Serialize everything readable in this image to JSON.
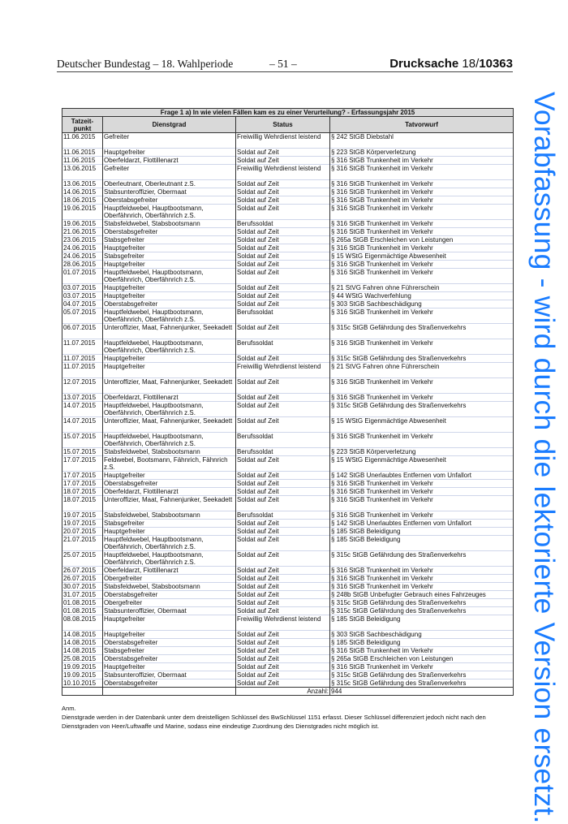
{
  "header": {
    "left": "Deutscher Bundestag – 18. Wahlperiode",
    "page": "– 51 –",
    "doc_prefix": "Drucksache ",
    "doc_number_a": "18/",
    "doc_number_b": "10363"
  },
  "table": {
    "title": "Frage 1 a) In wie vielen Fällen kam es zu einer Verurteilung? - Erfassungsjahr 2015",
    "columns": [
      "Tatzeit-\npunkt",
      "Dienstgrad",
      "Status",
      "Tatvorwurf"
    ],
    "rows": [
      [
        "11.06.2015",
        "Gefreiter",
        "Freiwillig Wehrdienst leistend",
        "§ 242 StGB Diebstahl"
      ],
      [
        "11.06.2015",
        "Hauptgefreiter",
        "Soldat auf Zeit",
        "§ 223 StGB Körperverletzung"
      ],
      [
        "11.06.2015",
        "Oberfeldarzt, Flottillenarzt",
        "Soldat auf Zeit",
        "§ 316 StGB Trunkenheit im Verkehr"
      ],
      [
        "13.06.2015",
        "Gefreiter",
        "Freiwillig Wehrdienst leistend",
        "§ 316 StGB Trunkenheit im Verkehr"
      ],
      [
        "13.06.2015",
        "Oberleutnant, Oberleutnant z.S.",
        "Soldat auf Zeit",
        "§ 316 StGB Trunkenheit im Verkehr"
      ],
      [
        "14.06.2015",
        "Stabsunteroffizier, Obermaat",
        "Soldat auf Zeit",
        "§ 316 StGB Trunkenheit im Verkehr"
      ],
      [
        "18.06.2015",
        "Oberstabsgefreiter",
        "Soldat auf Zeit",
        "§ 316 StGB Trunkenheit im Verkehr"
      ],
      [
        "19.06.2015",
        "Hauptfeldwebel, Hauptbootsmann,\nOberfähnrich, Oberfähnrich z.S.",
        "Soldat auf Zeit",
        "§ 316 StGB Trunkenheit im Verkehr"
      ],
      [
        "19.06.2015",
        "Stabsfeldwebel, Stabsbootsmann",
        "Berufssoldat",
        "§ 316 StGB Trunkenheit im Verkehr"
      ],
      [
        "21.06.2015",
        "Oberstabsgefreiter",
        "Soldat auf Zeit",
        "§ 316 StGB Trunkenheit im Verkehr"
      ],
      [
        "23.06.2015",
        "Stabsgefreiter",
        "Soldat auf Zeit",
        "§ 265a StGB Erschleichen von Leistungen"
      ],
      [
        "24.06.2015",
        "Hauptgefreiter",
        "Soldat auf Zeit",
        "§ 316 StGB Trunkenheit im Verkehr"
      ],
      [
        "24.06.2015",
        "Stabsgefreiter",
        "Soldat auf Zeit",
        "§ 15 WStG Eigenmächtige Abwesenheit"
      ],
      [
        "28.06.2015",
        "Hauptgefreiter",
        "Soldat auf Zeit",
        "§ 316 StGB Trunkenheit im Verkehr"
      ],
      [
        "01.07.2015",
        "Hauptfeldwebel, Hauptbootsmann,\nOberfähnrich, Oberfähnrich z.S.",
        "Soldat auf Zeit",
        "§ 316 StGB Trunkenheit im Verkehr"
      ],
      [
        "03.07.2015",
        "Hauptgefreiter",
        "Soldat auf Zeit",
        "§ 21 StVG Fahren ohne Führerschein"
      ],
      [
        "03.07.2015",
        "Hauptgefreiter",
        "Soldat auf Zeit",
        "§ 44 WStG Wachverfehlung"
      ],
      [
        "04.07.2015",
        "Oberstabsgefreiter",
        "Soldat auf Zeit",
        "§ 303 StGB Sachbeschädigung"
      ],
      [
        "05.07.2015",
        "Hauptfeldwebel, Hauptbootsmann,\nOberfähnrich, Oberfähnrich z.S.",
        "Berufssoldat",
        "§ 316 StGB Trunkenheit im Verkehr"
      ],
      [
        "06.07.2015",
        "Unteroffizier, Maat, Fahnenjunker, Seekadett",
        "Soldat auf Zeit",
        "§ 315c StGB Gefährdung des Straßenverkehrs"
      ],
      [
        "11.07.2015",
        "Hauptfeldwebel, Hauptbootsmann,\nOberfähnrich, Oberfähnrich z.S.",
        "Berufssoldat",
        "§ 316 StGB Trunkenheit im Verkehr"
      ],
      [
        "11.07.2015",
        "Hauptgefreiter",
        "Soldat auf Zeit",
        "§ 315c StGB Gefährdung des Straßenverkehrs"
      ],
      [
        "11.07.2015",
        "Hauptgefreiter",
        "Freiwillig Wehrdienst leistend",
        "§ 21 StVG Fahren ohne Führerschein"
      ],
      [
        "12.07.2015",
        "Unteroffizier, Maat, Fahnenjunker, Seekadett",
        "Soldat auf Zeit",
        "§ 316 StGB Trunkenheit im Verkehr"
      ],
      [
        "13.07.2015",
        "Oberfeldarzt, Flottillenarzt",
        "Soldat auf Zeit",
        "§ 316 StGB Trunkenheit im Verkehr"
      ],
      [
        "14.07.2015",
        "Hauptfeldwebel, Hauptbootsmann,\nOberfähnrich, Oberfähnrich z.S.",
        "Soldat auf Zeit",
        "§ 315c StGB Gefährdung des Straßenverkehrs"
      ],
      [
        "14.07.2015",
        "Unteroffizier, Maat, Fahnenjunker, Seekadett",
        "Soldat auf Zeit",
        "§ 15 WStG Eigenmächtige Abwesenheit"
      ],
      [
        "15.07.2015",
        "Hauptfeldwebel, Hauptbootsmann,\nOberfähnrich, Oberfähnrich z.S.",
        "Berufssoldat",
        "§ 316 StGB Trunkenheit im Verkehr"
      ],
      [
        "15.07.2015",
        "Stabsfeldwebel, Stabsbootsmann",
        "Berufssoldat",
        "§ 223 StGB Körperverletzung"
      ],
      [
        "17.07.2015",
        "Feldwebel, Bootsmann, Fähnrich, Fähnrich\nz.S.",
        "Soldat auf Zeit",
        "§ 15 WStG Eigenmächtige Abwesenheit"
      ],
      [
        "17.07.2015",
        "Hauptgefreiter",
        "Soldat auf Zeit",
        "§ 142 StGB Unerlaubtes Entfernen vom Unfallort"
      ],
      [
        "17.07.2015",
        "Oberstabsgefreiter",
        "Soldat auf Zeit",
        "§ 316 StGB Trunkenheit im Verkehr"
      ],
      [
        "18.07.2015",
        "Oberfeldarzt, Flottillenarzt",
        "Soldat auf Zeit",
        "§ 316 StGB Trunkenheit im Verkehr"
      ],
      [
        "18.07.2015",
        "Unteroffizier, Maat, Fahnenjunker, Seekadett",
        "Soldat auf Zeit",
        "§ 316 StGB Trunkenheit im Verkehr"
      ],
      [
        "19.07.2015",
        "Stabsfeldwebel, Stabsbootsmann",
        "Berufssoldat",
        "§ 316 StGB Trunkenheit im Verkehr"
      ],
      [
        "19.07.2015",
        "Stabsgefreiter",
        "Soldat auf Zeit",
        "§ 142 StGB Unerlaubtes Entfernen vom Unfallort"
      ],
      [
        "20.07.2015",
        "Hauptgefreiter",
        "Soldat auf Zeit",
        "§ 185 StGB Beleidigung"
      ],
      [
        "21.07.2015",
        "Hauptfeldwebel, Hauptbootsmann,\nOberfähnrich, Oberfähnrich z.S.",
        "Soldat auf Zeit",
        "§ 185 StGB Beleidigung"
      ],
      [
        "25.07.2015",
        "Hauptfeldwebel, Hauptbootsmann,\nOberfähnrich, Oberfähnrich z.S.",
        "Soldat auf Zeit",
        "§ 315c StGB Gefährdung des Straßenverkehrs"
      ],
      [
        "26.07.2015",
        "Oberfeldarzt, Flottillenarzt",
        "Soldat auf Zeit",
        "§ 316 StGB Trunkenheit im Verkehr"
      ],
      [
        "26.07.2015",
        "Obergefreiter",
        "Soldat auf Zeit",
        "§ 316 StGB Trunkenheit im Verkehr"
      ],
      [
        "30.07.2015",
        "Stabsfeldwebel, Stabsbootsmann",
        "Soldat auf Zeit",
        "§ 316 StGB Trunkenheit im Verkehr"
      ],
      [
        "31.07.2015",
        "Oberstabsgefreiter",
        "Soldat auf Zeit",
        "§ 248b StGB Unbefugter Gebrauch eines Fahrzeuges"
      ],
      [
        "01.08.2015",
        "Obergefreiter",
        "Soldat auf Zeit",
        "§ 315c StGB Gefährdung des Straßenverkehrs"
      ],
      [
        "01.08.2015",
        "Stabsunteroffizier, Obermaat",
        "Soldat auf Zeit",
        "§ 315c StGB Gefährdung des Straßenverkehrs"
      ],
      [
        "08.08.2015",
        "Hauptgefreiter",
        "Freiwillig Wehrdienst leistend",
        "§ 185 StGB Beleidigung"
      ],
      [
        "14.08.2015",
        "Hauptgefreiter",
        "Soldat auf Zeit",
        "§ 303 StGB Sachbeschädigung"
      ],
      [
        "14.08.2015",
        "Oberstabsgefreiter",
        "Soldat auf Zeit",
        "§ 185 StGB Beleidigung"
      ],
      [
        "14.08.2015",
        "Stabsgefreiter",
        "Soldat auf Zeit",
        "§ 316 StGB Trunkenheit im Verkehr"
      ],
      [
        "25.08.2015",
        "Oberstabsgefreiter",
        "Soldat auf Zeit",
        "§ 265a StGB Erschleichen von Leistungen"
      ],
      [
        "19.09.2015",
        "Hauptgefreiter",
        "Soldat auf Zeit",
        "§ 316 StGB Trunkenheit im Verkehr"
      ],
      [
        "19.09.2015",
        "Stabsunteroffizier, Obermaat",
        "Soldat auf Zeit",
        "§ 315c StGB Gefährdung des Straßenverkehrs"
      ],
      [
        "10.10.2015",
        "Oberstabsgefreiter",
        "Soldat auf Zeit",
        "§ 315c StGB Gefährdung des Straßenverkehrs"
      ]
    ],
    "total_label": "Anzahl:",
    "total_value": "944"
  },
  "note": {
    "label": "Anm.",
    "text": "Dienstgrade werden in der Datenbank unter dem dreistelligen Schlüssel des BwSchlüssel 1151 erfasst. Dieser Schlüssel differenziert jedoch nicht nach den Dienstgraden von Heer/Luftwaffe und Marine, sodass eine eindeutige Zuordnung des Dienstgrades nicht möglich ist."
  },
  "watermark": {
    "text": "Vorabfassung - wird durch die lektorierte Version ersetzt.",
    "color": "#1a7cff"
  }
}
